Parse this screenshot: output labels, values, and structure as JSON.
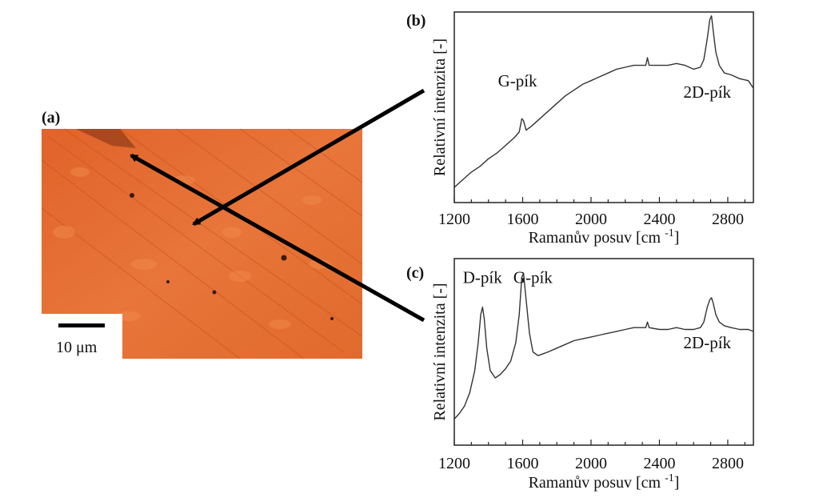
{
  "figure": {
    "panel_a": {
      "label": "(a)",
      "scale_bar_label": "10 μm",
      "image_description_colors": {
        "base": "#e46a2c",
        "dark": "#7a2f12"
      }
    },
    "panel_b": {
      "label": "(b)"
    },
    "panel_c": {
      "label": "(c)"
    }
  },
  "chart_data": [
    {
      "type": "line",
      "panel": "(b)",
      "xlabel": "Ramanův posuv [cm",
      "xlabel_sup": "-1",
      "xlabel_suffix": "]",
      "ylabel": "Relativní intenzita [-]",
      "xlim": [
        1200,
        2950
      ],
      "ylim": [
        0,
        1
      ],
      "x_ticks": [
        1200,
        1600,
        2000,
        2400,
        2800
      ],
      "annotations": [
        {
          "text": "G-pík",
          "x": 1570,
          "y": 0.61
        },
        {
          "text": "2D-pík",
          "x": 2680,
          "y": 0.55
        }
      ],
      "series": [
        {
          "x": [
            1200,
            1250,
            1300,
            1350,
            1400,
            1450,
            1500,
            1550,
            1580,
            1595,
            1605,
            1620,
            1650,
            1700,
            1750,
            1800,
            1850,
            1900,
            1950,
            2000,
            2050,
            2100,
            2150,
            2200,
            2250,
            2300,
            2320,
            2330,
            2340,
            2360,
            2400,
            2450,
            2500,
            2550,
            2600,
            2640,
            2660,
            2680,
            2695,
            2705,
            2715,
            2730,
            2750,
            2780,
            2820,
            2870,
            2920,
            2950
          ],
          "y": [
            0.08,
            0.12,
            0.16,
            0.19,
            0.23,
            0.26,
            0.3,
            0.34,
            0.37,
            0.44,
            0.43,
            0.38,
            0.4,
            0.44,
            0.48,
            0.52,
            0.56,
            0.59,
            0.62,
            0.64,
            0.66,
            0.68,
            0.7,
            0.71,
            0.72,
            0.72,
            0.72,
            0.76,
            0.72,
            0.72,
            0.72,
            0.72,
            0.73,
            0.72,
            0.7,
            0.71,
            0.75,
            0.86,
            0.96,
            0.98,
            0.9,
            0.79,
            0.72,
            0.68,
            0.67,
            0.65,
            0.64,
            0.6
          ]
        }
      ]
    },
    {
      "type": "line",
      "panel": "(c)",
      "xlabel": "Ramanův posuv [cm",
      "xlabel_sup": "-1",
      "xlabel_suffix": "]",
      "ylabel": "Relativní intenzita [-]",
      "xlim": [
        1200,
        2950
      ],
      "ylim": [
        0,
        1
      ],
      "x_ticks": [
        1200,
        1600,
        2000,
        2400,
        2800
      ],
      "annotations": [
        {
          "text": "D-pík",
          "x": 1365,
          "y": 0.87
        },
        {
          "text": "G-pík",
          "x": 1660,
          "y": 0.87
        },
        {
          "text": "2D-pík",
          "x": 2680,
          "y": 0.52
        }
      ],
      "series": [
        {
          "x": [
            1200,
            1230,
            1260,
            1290,
            1320,
            1340,
            1355,
            1365,
            1375,
            1390,
            1410,
            1440,
            1470,
            1500,
            1530,
            1560,
            1580,
            1595,
            1605,
            1620,
            1640,
            1660,
            1690,
            1720,
            1750,
            1800,
            1850,
            1900,
            1950,
            2000,
            2050,
            2100,
            2150,
            2200,
            2250,
            2300,
            2320,
            2330,
            2340,
            2400,
            2450,
            2500,
            2550,
            2600,
            2640,
            2660,
            2680,
            2695,
            2705,
            2715,
            2730,
            2750,
            2780,
            2820,
            2870,
            2920,
            2950
          ],
          "y": [
            0.14,
            0.17,
            0.21,
            0.28,
            0.4,
            0.55,
            0.7,
            0.74,
            0.68,
            0.52,
            0.4,
            0.36,
            0.38,
            0.41,
            0.45,
            0.55,
            0.7,
            0.9,
            0.92,
            0.78,
            0.6,
            0.5,
            0.48,
            0.49,
            0.5,
            0.52,
            0.54,
            0.56,
            0.57,
            0.58,
            0.59,
            0.6,
            0.61,
            0.62,
            0.63,
            0.63,
            0.63,
            0.66,
            0.63,
            0.62,
            0.62,
            0.63,
            0.62,
            0.62,
            0.63,
            0.66,
            0.74,
            0.78,
            0.79,
            0.76,
            0.7,
            0.66,
            0.64,
            0.63,
            0.62,
            0.62,
            0.61
          ]
        }
      ]
    }
  ]
}
